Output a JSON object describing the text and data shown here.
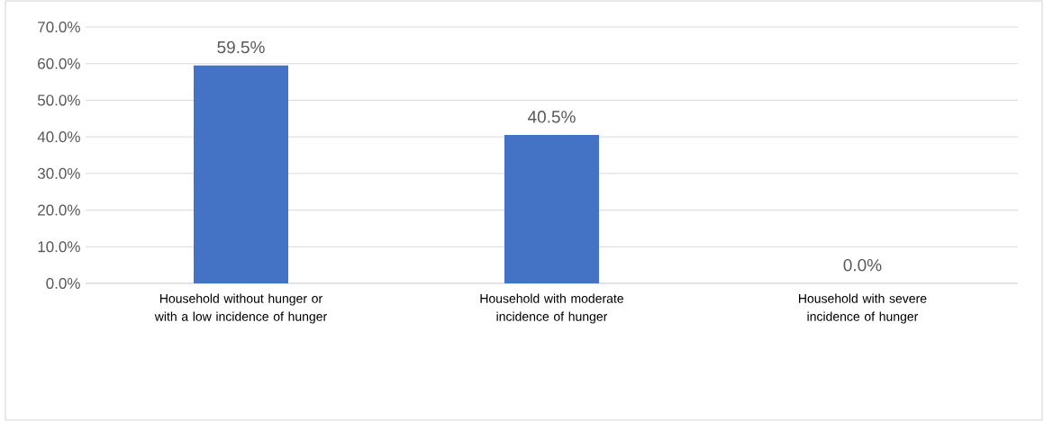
{
  "chart_data": {
    "type": "bar",
    "categories": [
      "Household without hunger or with a low incidence of hunger",
      "Household with moderate incidence of hunger",
      "Household with severe incidence of hunger"
    ],
    "values": [
      59.5,
      40.5,
      0.0
    ],
    "value_labels": [
      "59.5%",
      "40.5%",
      "0.0%"
    ],
    "color": "#4472c4",
    "ylim": [
      0,
      70
    ],
    "yticks": [
      {
        "value": 0,
        "label": "0.0%"
      },
      {
        "value": 10,
        "label": "10.0%"
      },
      {
        "value": 20,
        "label": "20.0%"
      },
      {
        "value": 30,
        "label": "30.0%"
      },
      {
        "value": 40,
        "label": "40.0%"
      },
      {
        "value": 50,
        "label": "50.0%"
      },
      {
        "value": 60,
        "label": "60.0%"
      },
      {
        "value": 70,
        "label": "70.0%"
      }
    ],
    "grid": "y"
  }
}
